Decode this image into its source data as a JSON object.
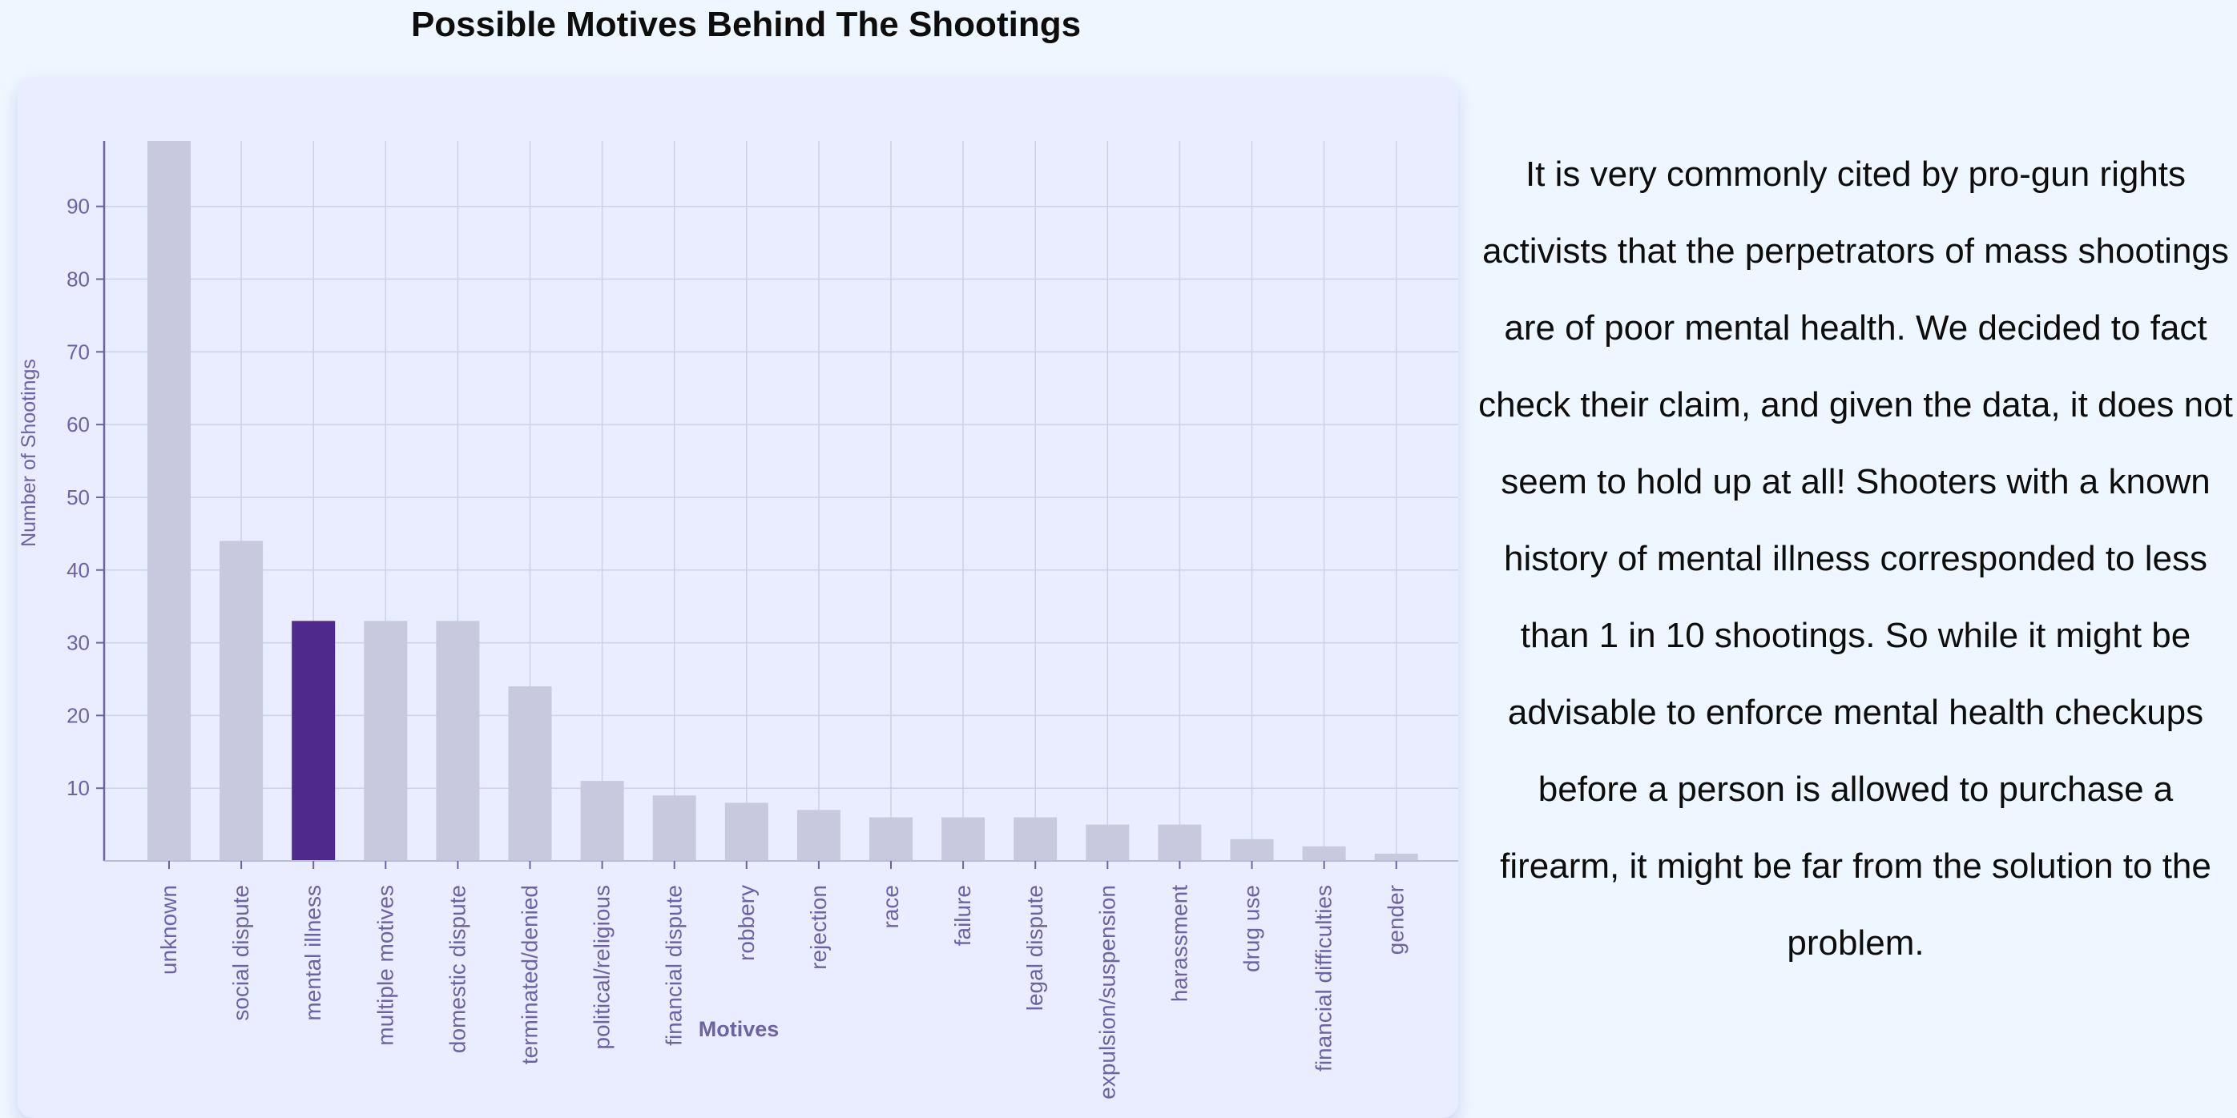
{
  "page": {
    "title": "Possible Motives Behind The Shootings",
    "paragraph": "It is very commonly cited by pro-gun rights activists that the perpetrators of mass shootings are of poor mental health. We decided to fact check their claim, and given the data, it does not seem to hold up at all! Shooters with a known history of mental illness corresponded to less than 1 in 10 shootings. So while it might be advisable to enforce mental health checkups before a person is allowed to purchase a firearm, it might be far from the solution to the problem."
  },
  "chart_data": {
    "type": "bar",
    "title": "Possible Motives Behind The Shootings",
    "xlabel": "Motives",
    "ylabel": "Number of Shootings",
    "categories": [
      "unknown",
      "social dispute",
      "mental illness",
      "multiple motives",
      "domestic dispute",
      "terminated/denied",
      "political/religious",
      "financial dispute",
      "robbery",
      "rejection",
      "race",
      "failure",
      "legal dispute",
      "expulsion/suspension",
      "harassment",
      "drug use",
      "financial difficulties",
      "gender"
    ],
    "values": [
      99,
      44,
      33,
      33,
      33,
      24,
      11,
      9,
      8,
      7,
      6,
      6,
      6,
      5,
      5,
      3,
      2,
      1
    ],
    "highlight": "mental illness",
    "yticks": [
      10,
      20,
      30,
      40,
      50,
      60,
      70,
      80,
      90
    ],
    "ylim": [
      0,
      99
    ],
    "grid": true,
    "colors": {
      "bar": "#c8c9de",
      "highlight": "#4f2a8c",
      "axis_text": "#6e62a6",
      "grid": "#cdd1e8",
      "axis": "#6e62a6"
    }
  }
}
